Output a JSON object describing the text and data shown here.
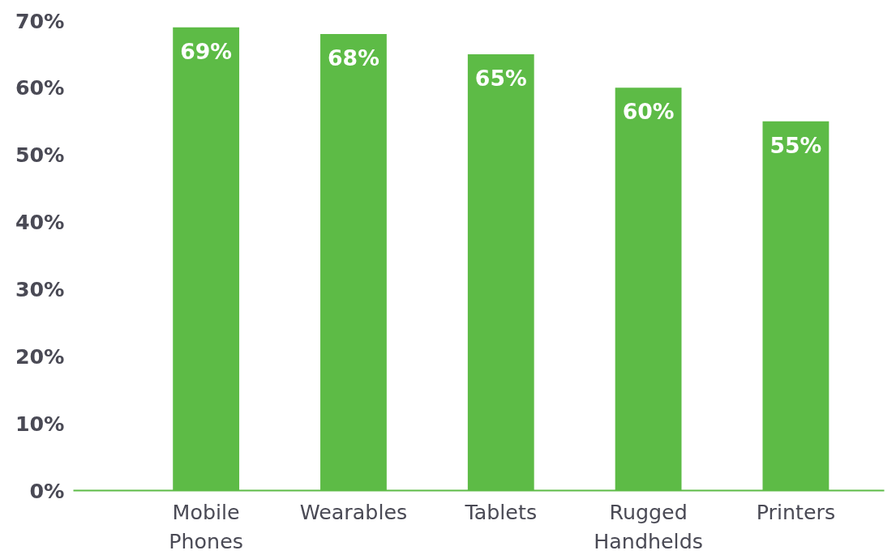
{
  "chart_data": {
    "type": "bar",
    "categories": [
      "Mobile Phones",
      "Wearables",
      "Tablets",
      "Rugged Handhelds",
      "Printers"
    ],
    "values": [
      69,
      68,
      65,
      60,
      55
    ],
    "color": "#5dbb46",
    "ylim": [
      0,
      70
    ],
    "yticks": [
      {
        "value": 0,
        "label": "0%"
      },
      {
        "value": 10,
        "label": "10%"
      },
      {
        "value": 20,
        "label": "20%"
      },
      {
        "value": 30,
        "label": "30%"
      },
      {
        "value": 40,
        "label": "40%"
      },
      {
        "value": 50,
        "label": "50%"
      },
      {
        "value": 60,
        "label": "60%"
      },
      {
        "value": 70,
        "label": "70%"
      }
    ],
    "value_labels": [
      "69%",
      "68%",
      "65%",
      "60%",
      "55%"
    ],
    "grid": false
  }
}
